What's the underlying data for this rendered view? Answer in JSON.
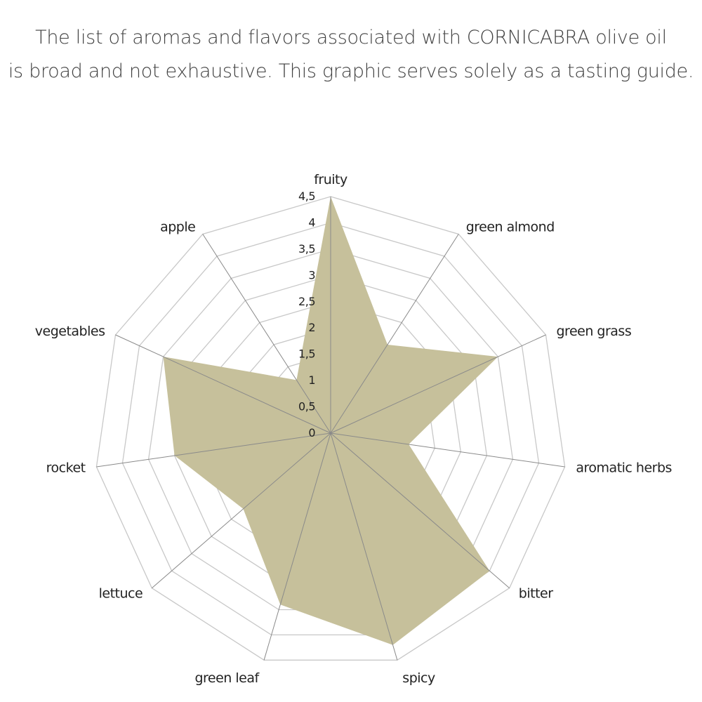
{
  "caption": {
    "line1": "The list of aromas and flavors associated with CORNICABRA olive oil",
    "line2": "is broad and not exhaustive. This graphic serves solely as a tasting guide."
  },
  "chart_data": {
    "type": "radar",
    "categories": [
      "fruity",
      "green almond",
      "green grass",
      "aromatic herbs",
      "bitter",
      "spicy",
      "green leaf",
      "lettuce",
      "rocket",
      "vegetables",
      "apple"
    ],
    "values": [
      4.5,
      2.0,
      3.5,
      1.5,
      4.0,
      4.2,
      3.4,
      2.2,
      3.0,
      3.5,
      1.2
    ],
    "ticks": [
      "0",
      "0,5",
      "1",
      "1,5",
      "2",
      "2,5",
      "3",
      "3,5",
      "4",
      "4,5"
    ],
    "rlim": [
      0,
      4.5
    ],
    "grid": true,
    "legend": "none",
    "colors": {
      "area": "#c6c09b",
      "grid": "#c8c8c8",
      "spokes": "#8a8a8a"
    }
  }
}
